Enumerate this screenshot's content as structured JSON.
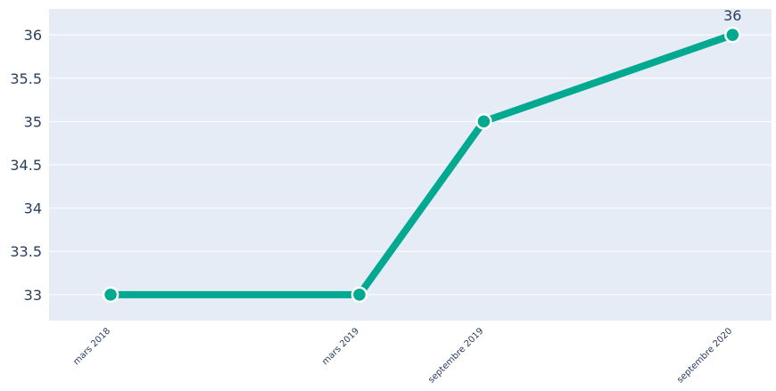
{
  "chart_data": {
    "type": "line",
    "title": "",
    "xlabel": "",
    "ylabel": "",
    "x": [
      "mars 2018",
      "mars 2019",
      "septembre 2019",
      "septembre 2020"
    ],
    "series": [
      {
        "values": [
          33,
          33,
          35,
          36
        ],
        "color": "#00a98f",
        "data_labels": [
          "",
          "",
          "",
          "36"
        ]
      }
    ],
    "ylim": [
      32.7,
      36.3
    ],
    "y_ticks": [
      33,
      33.5,
      34,
      34.5,
      35,
      35.5,
      36
    ],
    "y_tick_labels": [
      "33",
      "33.5",
      "34",
      "34.5",
      "35",
      "35.5",
      "36"
    ],
    "grid": true,
    "legend": "none",
    "plot_background": "#e5ecf6",
    "grid_color": "#ffffff",
    "text_color": "#2a3f5f"
  }
}
